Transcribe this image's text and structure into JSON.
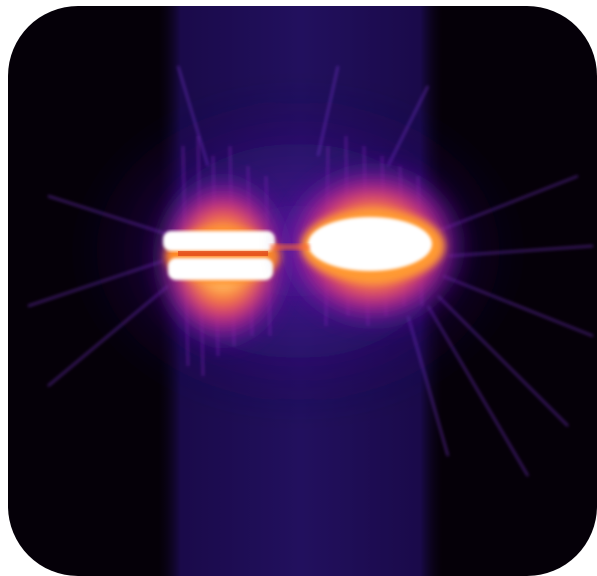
{
  "image": {
    "subject": "thermal-emission",
    "palette": {
      "background": "#050008",
      "band": "#1c0a52",
      "glow_outer": "#5a1aa8",
      "glow_mid": "#c81f8c",
      "glow_hot": "#ff7a1a",
      "core": "#ffffff"
    }
  }
}
